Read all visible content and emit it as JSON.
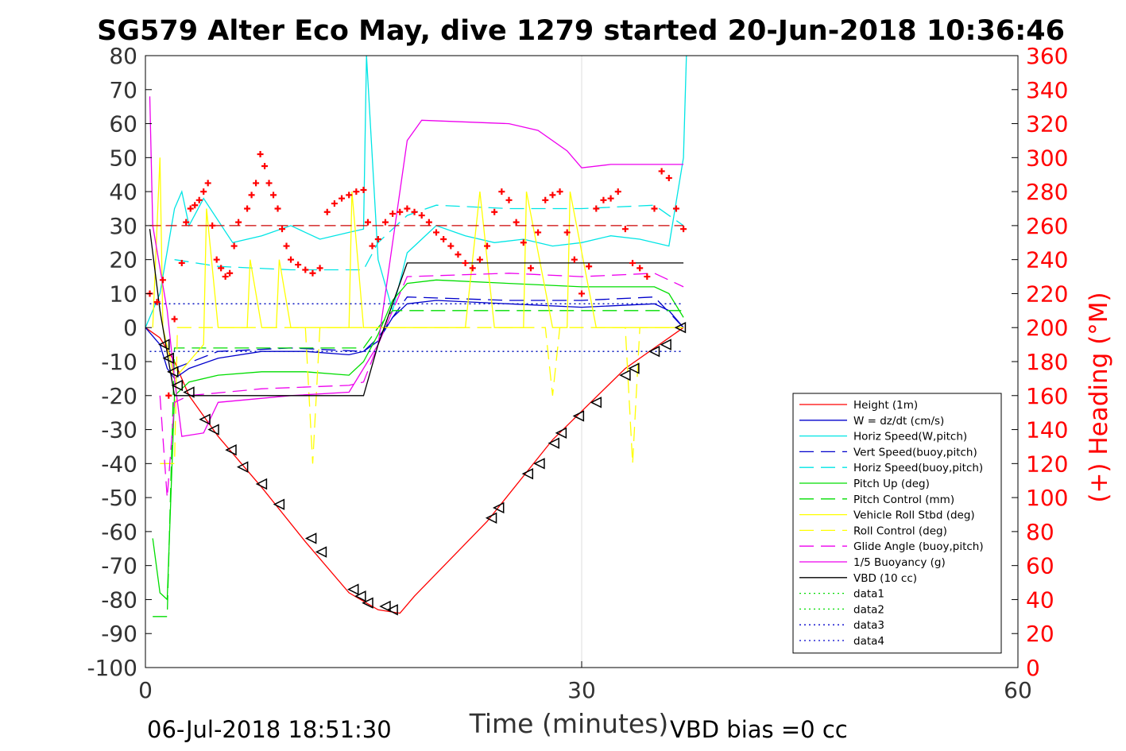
{
  "chart_data": {
    "type": "line",
    "title": "SG579 Alter Eco May, dive 1279 started 20-Jun-2018 10:36:46",
    "xlabel": "Time (minutes)",
    "ylabel": "",
    "y2label": "(+) Heading (°M)",
    "xlim": [
      0,
      60
    ],
    "ylim": [
      -100,
      80
    ],
    "y2lim": [
      0,
      360
    ],
    "xticks": [
      0,
      30,
      60
    ],
    "yticks": [
      80,
      70,
      60,
      50,
      40,
      30,
      20,
      10,
      0,
      -10,
      -20,
      -30,
      -40,
      -50,
      -60,
      -70,
      -80,
      -90,
      -100
    ],
    "y2ticks": [
      360,
      340,
      320,
      300,
      280,
      260,
      240,
      220,
      200,
      180,
      160,
      140,
      120,
      100,
      80,
      60,
      40,
      20,
      0
    ],
    "grid": "x-only at 30",
    "legend_position": "bottom-right",
    "footer_left": "06-Jul-2018 18:51:30",
    "footer_right": "VBD bias =0 cc",
    "legend": [
      {
        "label": "Height (1m)",
        "color": "#ff0000",
        "dash": "solid"
      },
      {
        "label": "W = dz/dt (cm/s)",
        "color": "#0000cc",
        "dash": "solid"
      },
      {
        "label": "Horiz Speed(W,pitch)",
        "color": "#00e5e5",
        "dash": "solid"
      },
      {
        "label": "Vert Speed(buoy,pitch)",
        "color": "#0000cc",
        "dash": "dash"
      },
      {
        "label": "Horiz Speed(buoy,pitch)",
        "color": "#00e5e5",
        "dash": "dash"
      },
      {
        "label": "Pitch Up (deg)",
        "color": "#00dd00",
        "dash": "solid"
      },
      {
        "label": "Pitch Control (mm)",
        "color": "#00dd00",
        "dash": "dash"
      },
      {
        "label": "Vehicle Roll Stbd (deg)",
        "color": "#ffff00",
        "dash": "solid"
      },
      {
        "label": "Roll Control (deg)",
        "color": "#ffff00",
        "dash": "dash"
      },
      {
        "label": "Glide Angle (buoy,pitch)",
        "color": "#ee00ee",
        "dash": "dash"
      },
      {
        "label": "1/5 Buoyancy (g)",
        "color": "#ee00ee",
        "dash": "solid"
      },
      {
        "label": "VBD (10 cc)",
        "color": "#000000",
        "dash": "solid"
      },
      {
        "label": "data1",
        "color": "#00dd00",
        "dash": "dot"
      },
      {
        "label": "data2",
        "color": "#00dd00",
        "dash": "dot"
      },
      {
        "label": "data3",
        "color": "#0000cc",
        "dash": "dot"
      },
      {
        "label": "data4",
        "color": "#0000cc",
        "dash": "dot"
      }
    ],
    "series": [
      {
        "name": "Height (1m)",
        "color": "#ff0000",
        "dash": "solid",
        "x": [
          0,
          1,
          2,
          3,
          5,
          8,
          11,
          14,
          16,
          17.5,
          18.5,
          23.5,
          28,
          33,
          37
        ],
        "y": [
          0,
          -3,
          -10,
          -20,
          -32,
          -47,
          -63,
          -78,
          -83,
          -84,
          -79,
          -57,
          -33,
          -12,
          0
        ]
      },
      {
        "name": "W = dz/dt (cm/s)",
        "color": "#0000cc",
        "dash": "solid",
        "x": [
          0,
          1,
          1.5,
          2,
          3,
          5,
          8,
          11,
          14,
          15,
          16,
          17,
          18,
          20,
          25,
          30,
          35,
          36,
          37
        ],
        "y": [
          0,
          -5,
          -12,
          -15,
          -12,
          -9,
          -7,
          -7,
          -8,
          -7,
          -4,
          3,
          7,
          8,
          7,
          6,
          7,
          5,
          0
        ]
      },
      {
        "name": "Horiz Speed(W,pitch)",
        "color": "#00e5e5",
        "dash": "solid",
        "x": [
          0,
          1,
          2,
          2.5,
          3,
          4,
          6,
          8,
          10,
          12,
          14,
          15,
          15.2,
          16,
          17,
          18,
          20,
          22,
          24,
          26,
          28,
          30,
          32,
          34,
          36,
          37,
          37.2
        ],
        "y": [
          0,
          10,
          35,
          40,
          30,
          38,
          25,
          27,
          30,
          26,
          28,
          29,
          80,
          20,
          5,
          22,
          30,
          27,
          25,
          26,
          24,
          25,
          27,
          26,
          24,
          50,
          80
        ]
      },
      {
        "name": "Vert Speed(buoy,pitch)",
        "color": "#0000cc",
        "dash": "dash",
        "x": [
          2,
          5,
          10,
          15,
          16,
          18,
          25,
          30,
          35,
          37
        ],
        "y": [
          -12,
          -7,
          -6,
          -7,
          -3,
          9,
          8,
          8,
          9,
          0
        ]
      },
      {
        "name": "Horiz Speed(buoy,pitch)",
        "color": "#00e5e5",
        "dash": "dash",
        "x": [
          2,
          5,
          10,
          15,
          16,
          18,
          20,
          25,
          30,
          35,
          37
        ],
        "y": [
          20,
          18,
          17,
          17,
          25,
          33,
          36,
          35,
          35,
          36,
          30
        ]
      },
      {
        "name": "Pitch Up (deg)",
        "color": "#00dd00",
        "dash": "solid",
        "x": [
          0.5,
          1,
          1.5,
          2,
          3,
          5,
          8,
          11,
          14,
          15,
          16,
          17,
          18,
          20,
          25,
          30,
          35,
          36,
          37
        ],
        "y": [
          -62,
          -78,
          -80,
          -20,
          -16,
          -14,
          -13,
          -13,
          -14,
          -10,
          -2,
          8,
          13,
          14,
          13,
          12,
          12,
          10,
          3
        ]
      },
      {
        "name": "Pitch Control (mm)",
        "color": "#00dd00",
        "dash": "dash",
        "x": [
          0.5,
          1.5,
          2,
          15,
          16,
          17,
          37
        ],
        "y": [
          -85,
          -85,
          -6,
          -6,
          0,
          5,
          5
        ]
      },
      {
        "name": "Vehicle Roll Stbd (deg)",
        "color": "#ffff00",
        "dash": "solid",
        "x": [
          0.5,
          1,
          1.2,
          2,
          3,
          4,
          4.2,
          5,
          7,
          7.2,
          8,
          9,
          9.2,
          10,
          11,
          14,
          14.2,
          15,
          16,
          18,
          22,
          23,
          24,
          26,
          26.2,
          28,
          29,
          29.2,
          31,
          33,
          35,
          37
        ],
        "y": [
          0,
          50,
          0,
          -15,
          -10,
          -5,
          35,
          0,
          0,
          20,
          0,
          0,
          20,
          0,
          0,
          0,
          40,
          0,
          0,
          0,
          0,
          40,
          0,
          0,
          40,
          0,
          0,
          40,
          0,
          0,
          0,
          0
        ]
      },
      {
        "name": "Roll Control (deg)",
        "color": "#ffff00",
        "dash": "dash",
        "x": [
          1,
          2,
          2.2,
          3,
          11,
          11.5,
          12,
          15,
          16,
          20,
          27.5,
          28,
          28.5,
          33,
          33.5,
          34,
          37
        ],
        "y": [
          -40,
          -40,
          0,
          0,
          0,
          -40,
          0,
          0,
          0,
          0,
          0,
          -20,
          0,
          0,
          -40,
          0,
          0
        ]
      },
      {
        "name": "Glide Angle (buoy,pitch)",
        "color": "#ee00ee",
        "dash": "dash",
        "x": [
          1,
          1.5,
          2,
          3,
          8,
          14,
          15,
          16,
          18,
          25,
          30,
          35,
          37
        ],
        "y": [
          -20,
          -50,
          -22,
          -20,
          -18,
          -17,
          -16,
          -5,
          15,
          16,
          15,
          16,
          12
        ]
      },
      {
        "name": "1/5 Buoyancy (g)",
        "color": "#ee00ee",
        "dash": "solid",
        "x": [
          0.3,
          0.5,
          1.5,
          2,
          2.5,
          4,
          5,
          10,
          14,
          16,
          18,
          19,
          25,
          27,
          29,
          30,
          32,
          37
        ],
        "y": [
          68,
          30,
          5,
          -15,
          -32,
          -31,
          -22,
          -20,
          -19,
          -5,
          55,
          61,
          60,
          58,
          52,
          47,
          48,
          48
        ]
      },
      {
        "name": "VBD (10 cc)",
        "color": "#000000",
        "dash": "solid",
        "x": [
          0.3,
          1,
          2,
          15,
          16,
          18,
          37
        ],
        "y": [
          29,
          5,
          -20,
          -20,
          -5,
          19,
          19
        ]
      },
      {
        "name": "data1",
        "color": "#00dd00",
        "dash": "dot",
        "x": [
          0.3,
          37
        ],
        "y": [
          7,
          7
        ]
      },
      {
        "name": "data2",
        "color": "#00dd00",
        "dash": "dot",
        "x": [
          0.3,
          37
        ],
        "y": [
          -7,
          -7
        ]
      },
      {
        "name": "data3",
        "color": "#0000cc",
        "dash": "dot",
        "x": [
          0.3,
          37
        ],
        "y": [
          7,
          7
        ]
      },
      {
        "name": "data4",
        "color": "#0000cc",
        "dash": "dot",
        "x": [
          0.3,
          37
        ],
        "y": [
          -7,
          -7
        ]
      },
      {
        "name": "Heading target",
        "color": "#cc0000",
        "dash": "longdash",
        "x": [
          0.3,
          37
        ],
        "y": [
          30,
          30
        ]
      }
    ],
    "heading_markers": {
      "axis": "right",
      "color": "#ff0000",
      "marker": "+",
      "x": [
        0.3,
        0.8,
        1.2,
        1.6,
        2.0,
        2.5,
        2.8,
        3.1,
        3.4,
        3.7,
        4.0,
        4.3,
        4.6,
        4.9,
        5.2,
        5.5,
        5.8,
        6.1,
        6.4,
        7.0,
        7.3,
        7.6,
        7.9,
        8.2,
        8.5,
        8.8,
        9.1,
        9.4,
        9.7,
        10.0,
        10.5,
        11.0,
        11.5,
        12.0,
        12.5,
        13.0,
        13.5,
        14.0,
        14.5,
        15.0,
        15.3,
        15.6,
        16.0,
        16.5,
        17.0,
        17.5,
        18.0,
        18.5,
        19.0,
        19.5,
        20.0,
        20.5,
        21.0,
        21.5,
        22.0,
        22.5,
        23.0,
        23.5,
        24.0,
        24.5,
        25.0,
        25.5,
        26.0,
        26.5,
        27.0,
        27.5,
        28.0,
        28.5,
        29.0,
        29.5,
        30.0,
        30.5,
        31.0,
        31.5,
        32.0,
        32.5,
        33.0,
        33.5,
        34.0,
        34.5,
        35.0,
        35.5,
        36.0,
        36.5,
        37.0
      ],
      "y": [
        220,
        215,
        228,
        160,
        205,
        238,
        262,
        270,
        272,
        275,
        280,
        285,
        260,
        240,
        235,
        230,
        232,
        248,
        262,
        270,
        278,
        285,
        302,
        295,
        285,
        278,
        270,
        258,
        248,
        240,
        237,
        234,
        232,
        235,
        268,
        273,
        276,
        278,
        280,
        281,
        262,
        248,
        252,
        262,
        267,
        268,
        270,
        268,
        266,
        262,
        256,
        252,
        248,
        243,
        238,
        235,
        240,
        248,
        268,
        280,
        275,
        262,
        250,
        235,
        256,
        275,
        278,
        280,
        256,
        240,
        220,
        236,
        270,
        275,
        276,
        280,
        258,
        238,
        235,
        230,
        270,
        292,
        288,
        270,
        258
      ]
    },
    "depth_markers": {
      "marker": "triangle",
      "color": "#000000",
      "x": [
        1.3,
        1.6,
        1.9,
        2.2,
        3.0,
        4.1,
        4.7,
        5.9,
        6.7,
        8.0,
        9.2,
        11.4,
        12.1,
        14.3,
        14.8,
        15.3,
        16.5,
        17.0,
        23.8,
        24.3,
        26.3,
        27.1,
        28.1,
        28.6,
        29.8,
        31.0,
        33.0,
        33.6,
        35.0,
        35.8,
        36.8
      ],
      "y": [
        -5,
        -9,
        -13,
        -17,
        -19,
        -27,
        -30,
        -36,
        -41,
        -46,
        -52,
        -62,
        -66,
        -77,
        -79,
        -81,
        -82,
        -83,
        -56,
        -53,
        -43,
        -40,
        -34,
        -31,
        -26,
        -22,
        -14,
        -12,
        -7,
        -5,
        0
      ]
    }
  }
}
